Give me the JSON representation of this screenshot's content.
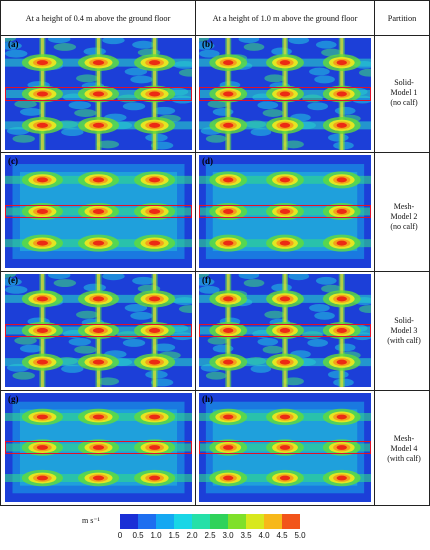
{
  "headers": {
    "col1": "At a height of 0.4 m above the ground floor",
    "col2": "At a height of 1.0 m above the ground floor",
    "col3": "Partition"
  },
  "panels": [
    {
      "label": "(a)",
      "style": "solid"
    },
    {
      "label": "(b)",
      "style": "solid"
    },
    {
      "label": "(c)",
      "style": "mesh"
    },
    {
      "label": "(d)",
      "style": "mesh"
    },
    {
      "label": "(e)",
      "style": "solid"
    },
    {
      "label": "(f)",
      "style": "solid"
    },
    {
      "label": "(g)",
      "style": "mesh"
    },
    {
      "label": "(h)",
      "style": "mesh"
    }
  ],
  "partitions": [
    {
      "lines": [
        "Solid-",
        "Model 1",
        "(no calf)"
      ]
    },
    {
      "lines": [
        "Mesh-",
        "Model 2",
        "(no calf)"
      ]
    },
    {
      "lines": [
        "Solid-",
        "Model 3",
        "(with calf)"
      ]
    },
    {
      "lines": [
        "Mesh-",
        "Model 4",
        "(with calf)"
      ]
    }
  ],
  "colorbar": {
    "unit": "m s⁻¹",
    "ticks": [
      "0",
      "0.5",
      "1.0",
      "1.5",
      "2.0",
      "2.5",
      "3.0",
      "3.5",
      "4.0",
      "4.5",
      "5.0"
    ],
    "colors": [
      "#1a2fd6",
      "#1e6ef0",
      "#15a8f2",
      "#19d6e6",
      "#25e0a8",
      "#2fd25a",
      "#7fe02a",
      "#d8e81e",
      "#f7b81a",
      "#f2541a"
    ]
  },
  "colors": {
    "background": "#1c3fd8",
    "border": "#222222",
    "box": "#e0102a"
  }
}
